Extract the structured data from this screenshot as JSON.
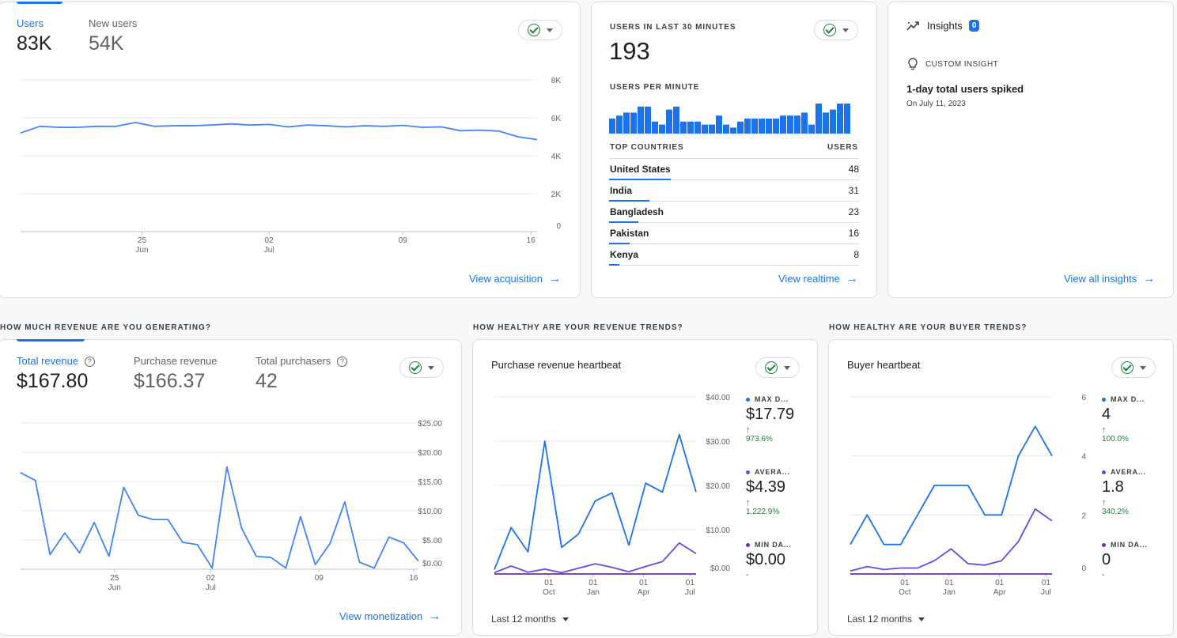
{
  "acquisition": {
    "tabs": [
      {
        "label": "Users",
        "value": "83K"
      },
      {
        "label": "New users",
        "value": "54K"
      }
    ],
    "link": "View acquisition",
    "chart_data": {
      "type": "line",
      "y_ticks": [
        "8K",
        "6K",
        "4K",
        "2K",
        "0"
      ],
      "x_ticks": [
        {
          "day": "25",
          "month": "Jun"
        },
        {
          "day": "02",
          "month": "Jul"
        },
        {
          "day": "09",
          "month": ""
        },
        {
          "day": "16",
          "month": ""
        }
      ],
      "ylim": [
        0,
        8000
      ],
      "series": [
        {
          "values": [
            5200,
            5550,
            5500,
            5500,
            5550,
            5550,
            5750,
            5550,
            5580,
            5580,
            5620,
            5680,
            5620,
            5650,
            5520,
            5620,
            5580,
            5520,
            5580,
            5550,
            5600,
            5500,
            5520,
            5320,
            5350,
            5300,
            5000,
            4850
          ]
        }
      ]
    }
  },
  "realtime": {
    "title": "USERS IN LAST 30 MINUTES",
    "count": "193",
    "per_minute_label": "USERS PER MINUTE",
    "chart_data": {
      "type": "bar",
      "values": [
        5,
        6,
        7,
        7,
        9,
        9,
        4,
        3,
        8,
        9,
        4,
        4,
        4,
        3,
        3,
        6,
        3,
        2,
        4,
        5,
        5,
        5,
        5,
        5,
        6,
        6,
        6,
        7,
        3,
        10,
        7,
        8,
        10,
        10
      ]
    },
    "countries_header": "TOP COUNTRIES",
    "users_header": "USERS",
    "countries": [
      {
        "name": "United States",
        "value": "48",
        "frac": 1.0
      },
      {
        "name": "India",
        "value": "31",
        "frac": 0.65
      },
      {
        "name": "Bangladesh",
        "value": "23",
        "frac": 0.48
      },
      {
        "name": "Pakistan",
        "value": "16",
        "frac": 0.33
      },
      {
        "name": "Kenya",
        "value": "8",
        "frac": 0.17
      }
    ],
    "link": "View realtime"
  },
  "insights": {
    "title": "Insights",
    "badge": "0",
    "custom_label": "CUSTOM INSIGHT",
    "headline": "1-day total users spiked",
    "date": "On July 11, 2023",
    "link": "View all insights"
  },
  "revenue": {
    "section_title": "HOW MUCH REVENUE ARE YOU GENERATING?",
    "tabs": [
      {
        "label": "Total revenue",
        "value": "$167.80"
      },
      {
        "label": "Purchase revenue",
        "value": "$166.37"
      },
      {
        "label": "Total purchasers",
        "value": "42"
      }
    ],
    "link": "View monetization",
    "chart_data": {
      "type": "line",
      "y_ticks": [
        "$25.00",
        "$20.00",
        "$15.00",
        "$10.00",
        "$5.00",
        "$0.00"
      ],
      "x_ticks": [
        {
          "day": "25",
          "month": "Jun"
        },
        {
          "day": "02",
          "month": "Jul"
        },
        {
          "day": "09",
          "month": ""
        },
        {
          "day": "16",
          "month": ""
        }
      ],
      "ylim": [
        0,
        25
      ],
      "series": [
        {
          "values": [
            16.5,
            15.2,
            2.5,
            6.2,
            2.8,
            8.0,
            2.2,
            14.0,
            9.2,
            8.5,
            8.5,
            4.6,
            4.2,
            0.2,
            17.5,
            7.0,
            2.2,
            2.0,
            0.2,
            9.0,
            0.8,
            4.4,
            11.5,
            1.2,
            0.2,
            5.5,
            4.5,
            1.4
          ]
        }
      ]
    }
  },
  "revenue_trends": {
    "section_title": "HOW HEALTHY ARE YOUR REVENUE TRENDS?",
    "title": "Purchase revenue heartbeat",
    "legend": [
      {
        "label": "MAX D...",
        "value": "$17.79",
        "change": "973.6%",
        "color": "#1a73e8"
      },
      {
        "label": "AVERA...",
        "value": "$4.39",
        "change": "1,222.9%",
        "color": "#5b4fe0"
      },
      {
        "label": "MIN DA...",
        "value": "$0.00",
        "change": "-",
        "color": "#6c2fb3"
      }
    ],
    "dropdown": "Last 12 months",
    "chart_data": {
      "type": "line",
      "y_ticks": [
        "$40.00",
        "$30.00",
        "$20.00",
        "$10.00",
        "$0.00"
      ],
      "x_ticks": [
        {
          "day": "01",
          "month": "Oct"
        },
        {
          "day": "01",
          "month": "Jan"
        },
        {
          "day": "01",
          "month": "Apr"
        },
        {
          "day": "01",
          "month": "Jul"
        }
      ],
      "ylim": [
        0,
        40
      ],
      "series": [
        {
          "name": "MAX D...",
          "color": "#1a73e8",
          "values": [
            1,
            10.5,
            5,
            30,
            6,
            9,
            16.5,
            18.3,
            6.5,
            20.5,
            18.5,
            31.5,
            18.5
          ]
        },
        {
          "name": "AVERA...",
          "color": "#5b4fe0",
          "values": [
            0.3,
            1.8,
            0.4,
            1.1,
            0.3,
            1.3,
            2.3,
            1.5,
            0.5,
            1.7,
            2.8,
            7,
            4.6
          ]
        },
        {
          "name": "MIN DA...",
          "color": "#6c2fb3",
          "values": [
            0,
            0,
            0,
            0,
            0,
            0,
            0,
            0,
            0,
            0,
            0,
            0,
            0
          ]
        }
      ]
    }
  },
  "buyer_trends": {
    "section_title": "HOW HEALTHY ARE YOUR BUYER TRENDS?",
    "title": "Buyer heartbeat",
    "legend": [
      {
        "label": "MAX D...",
        "value": "4",
        "change": "100.0%",
        "color": "#1a73e8"
      },
      {
        "label": "AVERA...",
        "value": "1.8",
        "change": "340.2%",
        "color": "#5b4fe0"
      },
      {
        "label": "MIN DA...",
        "value": "0",
        "change": "-",
        "color": "#6c2fb3"
      }
    ],
    "dropdown": "Last 12 months",
    "chart_data": {
      "type": "line",
      "y_ticks": [
        "6",
        "4",
        "2",
        "0"
      ],
      "x_ticks": [
        {
          "day": "01",
          "month": "Oct"
        },
        {
          "day": "01",
          "month": "Jan"
        },
        {
          "day": "01",
          "month": "Apr"
        },
        {
          "day": "01",
          "month": "Jul"
        }
      ],
      "ylim": [
        0,
        6
      ],
      "series": [
        {
          "name": "MAX D...",
          "color": "#1a73e8",
          "values": [
            1,
            2,
            1,
            1,
            2,
            3,
            3,
            3,
            2,
            2,
            4,
            5,
            4
          ]
        },
        {
          "name": "AVERA...",
          "color": "#5b4fe0",
          "values": [
            0.1,
            0.25,
            0.15,
            0.2,
            0.2,
            0.45,
            0.85,
            0.35,
            0.3,
            0.45,
            1.1,
            2.2,
            1.8
          ]
        },
        {
          "name": "MIN DA...",
          "color": "#6c2fb3",
          "values": [
            0,
            0,
            0,
            0,
            0,
            0,
            0,
            0,
            0,
            0,
            0,
            0,
            0
          ]
        }
      ]
    }
  }
}
